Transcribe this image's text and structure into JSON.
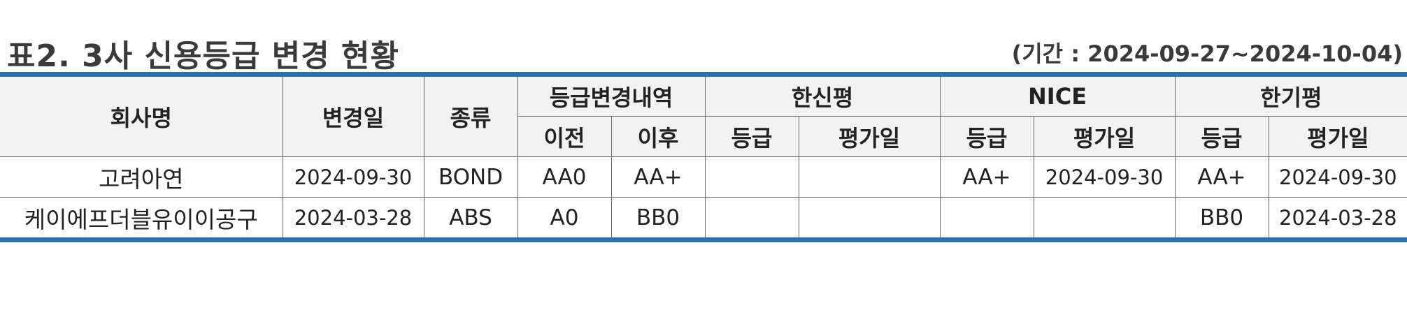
{
  "header": {
    "title": "표2. 3사 신용등급 변경 현황",
    "period": "(기간 : 2024-09-27~2024-10-04)"
  },
  "table": {
    "columns": {
      "company": "회사명",
      "change_date": "변경일",
      "kind": "종류",
      "change_detail": "등급변경내역",
      "before": "이전",
      "after": "이후",
      "agency_kis": "한신평",
      "agency_nice": "NICE",
      "agency_kr": "한기평",
      "grade": "등급",
      "eval_date": "평가일"
    },
    "rows": [
      {
        "company": "고려아연",
        "change_date": "2024-09-30",
        "kind": "BOND",
        "before": "AA0",
        "after": "AA+",
        "kis_grade": "",
        "kis_date": "",
        "nice_grade": "AA+",
        "nice_date": "2024-09-30",
        "kr_grade": "AA+",
        "kr_date": "2024-09-30"
      },
      {
        "company": "케이에프더블유이이공구",
        "change_date": "2024-03-28",
        "kind": "ABS",
        "before": "A0",
        "after": "BB0",
        "kis_grade": "",
        "kis_date": "",
        "nice_grade": "",
        "nice_date": "",
        "kr_grade": "BB0",
        "kr_date": "2024-03-28"
      }
    ]
  },
  "colors": {
    "rule": "#2e6fb0",
    "header_bg": "#f2f2f2",
    "grid": "#6b6b6b"
  }
}
